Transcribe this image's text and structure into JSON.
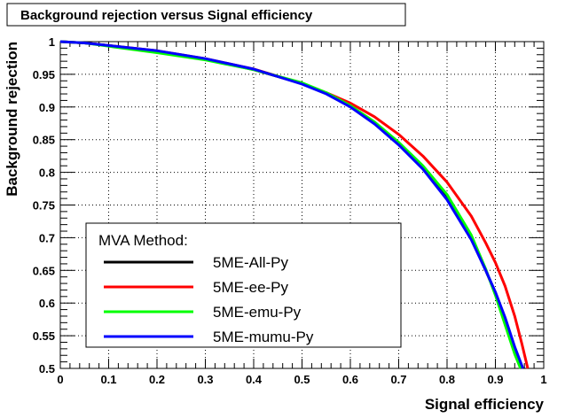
{
  "chart_data": {
    "type": "line",
    "title": "Background rejection versus Signal efficiency",
    "xlabel": "Signal efficiency",
    "ylabel": "Background rejection",
    "xlim": [
      0,
      1
    ],
    "ylim": [
      0.5,
      1
    ],
    "xticks": [
      "0",
      "0.1",
      "0.2",
      "0.3",
      "0.4",
      "0.5",
      "0.6",
      "0.7",
      "0.8",
      "0.9",
      "1"
    ],
    "yticks": [
      "0.5",
      "0.55",
      "0.6",
      "0.65",
      "0.7",
      "0.75",
      "0.8",
      "0.85",
      "0.9",
      "0.95",
      "1"
    ],
    "grid": true,
    "legend": {
      "placement": "bottom-left",
      "header": "MVA Method:"
    },
    "series": [
      {
        "name": "5ME-All-Py",
        "color": "#000000",
        "x": [
          0,
          0.05,
          0.1,
          0.2,
          0.3,
          0.4,
          0.5,
          0.55,
          0.6,
          0.65,
          0.7,
          0.75,
          0.8,
          0.85,
          0.88,
          0.9,
          0.92,
          0.94,
          0.955
        ],
        "y": [
          1,
          0.998,
          0.994,
          0.985,
          0.973,
          0.957,
          0.936,
          0.921,
          0.902,
          0.876,
          0.845,
          0.808,
          0.761,
          0.699,
          0.65,
          0.615,
          0.574,
          0.528,
          0.5
        ]
      },
      {
        "name": "5ME-ee-Py",
        "color": "#ff0000",
        "x": [
          0,
          0.05,
          0.1,
          0.2,
          0.3,
          0.4,
          0.5,
          0.55,
          0.6,
          0.65,
          0.7,
          0.75,
          0.8,
          0.85,
          0.88,
          0.9,
          0.92,
          0.94,
          0.955,
          0.967
        ],
        "y": [
          1,
          0.998,
          0.994,
          0.986,
          0.974,
          0.958,
          0.936,
          0.922,
          0.906,
          0.885,
          0.858,
          0.825,
          0.785,
          0.733,
          0.692,
          0.662,
          0.626,
          0.58,
          0.537,
          0.5
        ]
      },
      {
        "name": "5ME-emu-Py",
        "color": "#00ff00",
        "x": [
          0,
          0.05,
          0.1,
          0.2,
          0.3,
          0.4,
          0.5,
          0.55,
          0.6,
          0.65,
          0.7,
          0.75,
          0.8,
          0.85,
          0.88,
          0.9,
          0.92,
          0.94,
          0.952
        ],
        "y": [
          1,
          0.998,
          0.993,
          0.983,
          0.972,
          0.957,
          0.937,
          0.922,
          0.902,
          0.877,
          0.846,
          0.81,
          0.766,
          0.704,
          0.652,
          0.612,
          0.567,
          0.522,
          0.5
        ]
      },
      {
        "name": "5ME-mumu-Py",
        "color": "#0000ff",
        "x": [
          0,
          0.05,
          0.1,
          0.2,
          0.3,
          0.4,
          0.5,
          0.55,
          0.6,
          0.65,
          0.7,
          0.75,
          0.8,
          0.85,
          0.88,
          0.9,
          0.92,
          0.94,
          0.957
        ],
        "y": [
          1,
          0.998,
          0.994,
          0.986,
          0.974,
          0.958,
          0.935,
          0.92,
          0.9,
          0.874,
          0.842,
          0.805,
          0.758,
          0.697,
          0.65,
          0.617,
          0.578,
          0.533,
          0.5
        ]
      }
    ]
  }
}
